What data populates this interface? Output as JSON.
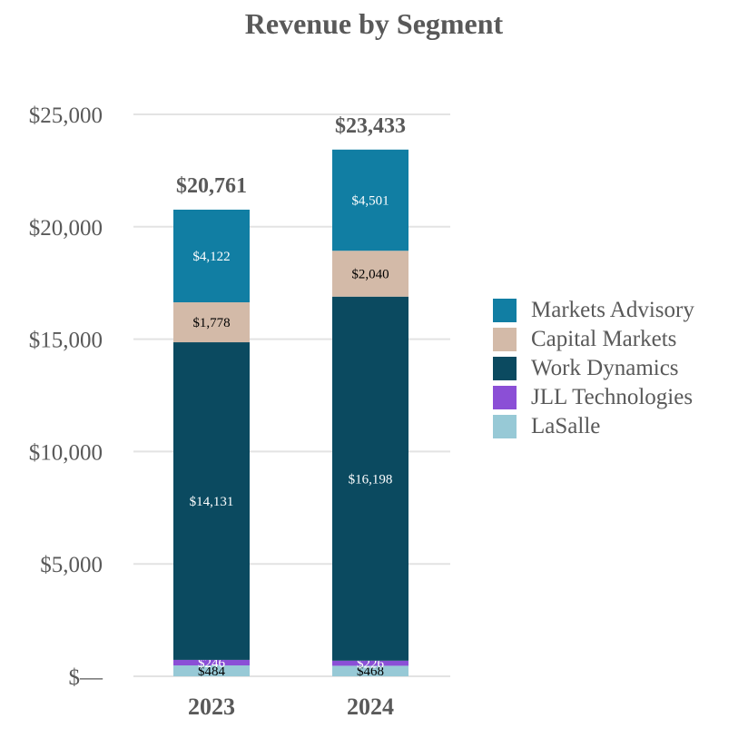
{
  "chart_data": {
    "type": "bar",
    "stacked": true,
    "title": "Revenue by Segment",
    "categories": [
      "2023",
      "2024"
    ],
    "series": [
      {
        "name": "LaSalle",
        "values": [
          484,
          468
        ],
        "labels": [
          "$484",
          "$468"
        ],
        "color": "#97c9d6",
        "label_color": "#000000"
      },
      {
        "name": "JLL Technologies",
        "values": [
          246,
          226
        ],
        "labels": [
          "$246",
          "$226"
        ],
        "color": "#8b4fd6",
        "label_color": "#ffffff"
      },
      {
        "name": "Work Dynamics",
        "values": [
          14131,
          16198
        ],
        "labels": [
          "$14,131",
          "$16,198"
        ],
        "color": "#0b4a60",
        "label_color": "#ffffff"
      },
      {
        "name": "Capital Markets",
        "values": [
          1778,
          2040
        ],
        "labels": [
          "$1,778",
          "$2,040"
        ],
        "color": "#d3baa8",
        "label_color": "#000000"
      },
      {
        "name": "Markets Advisory",
        "values": [
          4122,
          4501
        ],
        "labels": [
          "$4,122",
          "$4,501"
        ],
        "color": "#117ea3",
        "label_color": "#ffffff"
      }
    ],
    "totals": [
      20761,
      23433
    ],
    "total_labels": [
      "$20,761",
      "$23,433"
    ],
    "ylim": [
      0,
      25000
    ],
    "yticks": [
      0,
      5000,
      10000,
      15000,
      20000,
      25000
    ],
    "ytick_labels": [
      "$—",
      "$5,000",
      "$10,000",
      "$15,000",
      "$20,000",
      "$25,000"
    ],
    "legend_order": [
      "Markets Advisory",
      "Capital Markets",
      "Work Dynamics",
      "JLL Technologies",
      "LaSalle"
    ],
    "legend_position": "right",
    "grid": true,
    "xlabel": "",
    "ylabel": ""
  }
}
